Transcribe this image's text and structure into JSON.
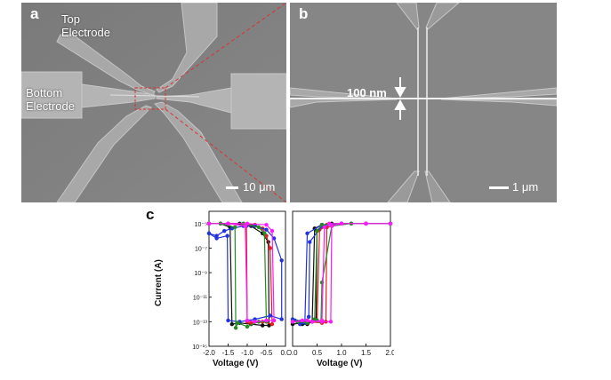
{
  "panel_a": {
    "label": "a",
    "top_electrode_label": [
      "Top",
      "Electrode"
    ],
    "bottom_electrode_label": [
      "Bottom",
      "Electrode"
    ],
    "scale_label": "10 μm"
  },
  "panel_b": {
    "label": "b",
    "gap_label": "100 nm",
    "scale_label": "1 μm"
  },
  "panel_c": {
    "label": "c"
  },
  "colors": {
    "black": "#111111",
    "red": "#e0201e",
    "blue": "#2233dd",
    "green": "#228b22",
    "magenta": "#ff1aff",
    "zoom_line": "#e03030"
  },
  "chart_data": [
    {
      "type": "scatter",
      "xlabel": "Voltage (V)",
      "ylabel": "Current (A)",
      "xlim": [
        -2.0,
        0.0
      ],
      "ylim_log10": [
        -15,
        -4
      ],
      "yscale": "log",
      "xticks": [
        "-2.0",
        "-1.5",
        "-1.0",
        "-0.5",
        "0.0"
      ],
      "yticks": [
        "10⁻⁵",
        "10⁻⁷",
        "10⁻⁹",
        "10⁻¹¹",
        "10⁻¹³",
        "10⁻¹⁵"
      ],
      "series": [
        {
          "color": "black",
          "x": [
            -2.0,
            -1.5,
            -1.2,
            -0.9,
            -0.6,
            -0.45,
            -0.43,
            -0.6,
            -0.9,
            -1.2,
            -1.4,
            -1.45,
            -1.7,
            -2.0
          ],
          "log_current": [
            -5,
            -5,
            -5,
            -5.2,
            -5.8,
            -6.5,
            -13.3,
            -13.3,
            -13.2,
            -13.1,
            -13.2,
            -5.3,
            -5,
            -5
          ]
        },
        {
          "color": "red",
          "x": [
            -2.0,
            -1.5,
            -1.1,
            -0.8,
            -0.6,
            -0.5,
            -0.4,
            -0.35,
            -0.6,
            -0.9,
            -1.0,
            -1.02,
            -1.5,
            -2.0
          ],
          "log_current": [
            -5,
            -5,
            -5,
            -5.1,
            -5.4,
            -6.0,
            -7.0,
            -13.2,
            -13.0,
            -13.1,
            -13.0,
            -5.2,
            -5,
            -5
          ]
        },
        {
          "color": "blue",
          "x": [
            -2.0,
            -1.8,
            -1.6,
            -1.4,
            -1.1,
            -0.8,
            -0.5,
            -0.3,
            -0.1,
            -0.1,
            -0.4,
            -0.8,
            -1.2,
            -1.5,
            -1.52,
            -1.8,
            -2.0
          ],
          "log_current": [
            -5.8,
            -6.0,
            -5.6,
            -5.4,
            -5.2,
            -5.2,
            -5.5,
            -6.2,
            -8.0,
            -12.8,
            -12.5,
            -12.8,
            -13.0,
            -12.9,
            -6.0,
            -6.2,
            -5.8
          ]
        },
        {
          "color": "green",
          "x": [
            -2.0,
            -1.5,
            -1.1,
            -0.7,
            -0.55,
            -0.5,
            -0.7,
            -1.0,
            -1.25,
            -1.3,
            -1.32,
            -1.7,
            -2.0
          ],
          "log_current": [
            -5,
            -5,
            -5,
            -5.3,
            -5.8,
            -13.0,
            -13.0,
            -13.4,
            -13.1,
            -13.5,
            -5.3,
            -5,
            -5
          ]
        },
        {
          "color": "magenta",
          "x": [
            -2.0,
            -1.5,
            -1.0,
            -0.5,
            -0.35,
            -0.3,
            -0.5,
            -0.8,
            -1.0,
            -1.05,
            -1.5,
            -2.0
          ],
          "log_current": [
            -5,
            -5,
            -5,
            -5.1,
            -5.6,
            -12.9,
            -12.9,
            -13.0,
            -12.9,
            -5.2,
            -5,
            -5
          ]
        }
      ]
    },
    {
      "type": "scatter",
      "xlabel": "Voltage (V)",
      "xlim": [
        0.0,
        2.0
      ],
      "ylim_log10": [
        -15,
        -4
      ],
      "yscale": "log",
      "xticks": [
        "0.0",
        "0.5",
        "1.0",
        "1.5",
        "2.0"
      ],
      "series": [
        {
          "color": "black",
          "x": [
            0.0,
            0.2,
            0.4,
            0.48,
            0.5,
            0.8,
            1.2,
            2.0,
            1.5,
            1.0,
            0.6,
            0.45,
            0.4,
            0.3,
            0.2,
            0.1
          ],
          "log_current": [
            -13.2,
            -13.1,
            -13.0,
            -12.8,
            -5.6,
            -5.0,
            -5.0,
            -5.0,
            -5.0,
            -5.0,
            -5.1,
            -5.4,
            -13.0,
            -13.2,
            -13.2,
            -13.0
          ]
        },
        {
          "color": "red",
          "x": [
            0.0,
            0.3,
            0.6,
            0.68,
            0.7,
            1.0,
            1.5,
            2.0,
            1.5,
            1.0,
            0.7,
            0.55,
            0.5,
            0.3,
            0.1
          ],
          "log_current": [
            -13.0,
            -13.0,
            -13.1,
            -13.0,
            -5.3,
            -5.0,
            -5.0,
            -5.0,
            -5.0,
            -5.0,
            -5.1,
            -5.5,
            -12.9,
            -13.0,
            -13.0
          ]
        },
        {
          "color": "blue",
          "x": [
            0.0,
            0.15,
            0.3,
            0.33,
            0.35,
            0.6,
            1.0,
            2.0,
            1.5,
            1.0,
            0.6,
            0.3,
            0.25,
            0.15,
            0.05
          ],
          "log_current": [
            -12.8,
            -13.0,
            -12.9,
            -12.6,
            -6.5,
            -5.2,
            -5.0,
            -5.0,
            -5.0,
            -5.0,
            -5.1,
            -5.8,
            -13.1,
            -13.2,
            -12.9
          ]
        },
        {
          "color": "green",
          "x": [
            0.0,
            0.3,
            0.5,
            0.58,
            0.6,
            0.8,
            1.2,
            2.0,
            1.5,
            1.0,
            0.6,
            0.5,
            0.45,
            0.3,
            0.1
          ],
          "log_current": [
            -13.0,
            -13.0,
            -12.9,
            -13.0,
            -9.8,
            -5.2,
            -5.0,
            -5.0,
            -5.0,
            -5.0,
            -5.1,
            -5.6,
            -12.8,
            -13.1,
            -13.0
          ]
        },
        {
          "color": "magenta",
          "x": [
            0.0,
            0.3,
            0.6,
            0.78,
            0.8,
            1.0,
            1.5,
            2.0,
            1.5,
            1.0,
            0.75,
            0.65,
            0.6,
            0.4,
            0.2
          ],
          "log_current": [
            -13.0,
            -12.9,
            -13.0,
            -13.0,
            -5.2,
            -5.0,
            -5.0,
            -5.0,
            -5.0,
            -5.0,
            -5.0,
            -5.3,
            -12.9,
            -13.0,
            -12.9
          ]
        }
      ]
    }
  ]
}
